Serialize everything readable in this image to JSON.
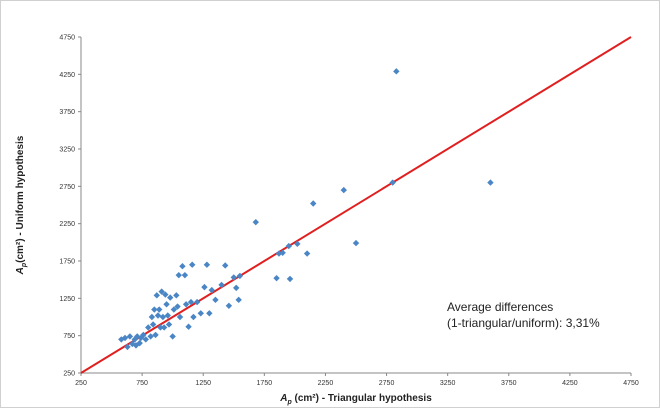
{
  "chart_data": {
    "type": "scatter",
    "xlabel": {
      "main": "A",
      "sub": "p",
      "rest": " (cm²) - Triangular hypothesis"
    },
    "ylabel": {
      "main": "A",
      "sub": "p",
      "rest": "(cm²) -  Uniform hypothesis"
    },
    "xlim": [
      250,
      4750
    ],
    "ylim": [
      250,
      4750
    ],
    "xticks": [
      "250",
      "750",
      "1250",
      "1750",
      "2250",
      "2750",
      "3250",
      "3750",
      "4250",
      "4750"
    ],
    "yticks": [
      "250",
      "750",
      "1250",
      "1750",
      "2250",
      "2750",
      "3250",
      "3750",
      "4250",
      "4750"
    ],
    "grid": false,
    "marker_color": "#4a86c5",
    "line_color": "#e02020",
    "reference_line": {
      "x": [
        250,
        4750
      ],
      "y": [
        250,
        4750
      ]
    },
    "annotation": [
      "Average differences",
      "(1-triangular/uniform): 3,31%"
    ],
    "points": [
      {
        "x": 580,
        "y": 700
      },
      {
        "x": 610,
        "y": 720
      },
      {
        "x": 630,
        "y": 600
      },
      {
        "x": 650,
        "y": 740
      },
      {
        "x": 670,
        "y": 640
      },
      {
        "x": 690,
        "y": 700
      },
      {
        "x": 700,
        "y": 620
      },
      {
        "x": 710,
        "y": 740
      },
      {
        "x": 730,
        "y": 650
      },
      {
        "x": 740,
        "y": 720
      },
      {
        "x": 760,
        "y": 760
      },
      {
        "x": 780,
        "y": 700
      },
      {
        "x": 800,
        "y": 860
      },
      {
        "x": 820,
        "y": 740
      },
      {
        "x": 830,
        "y": 1000
      },
      {
        "x": 840,
        "y": 900
      },
      {
        "x": 850,
        "y": 1100
      },
      {
        "x": 860,
        "y": 760
      },
      {
        "x": 870,
        "y": 1290
      },
      {
        "x": 880,
        "y": 1020
      },
      {
        "x": 890,
        "y": 1100
      },
      {
        "x": 900,
        "y": 860
      },
      {
        "x": 910,
        "y": 1340
      },
      {
        "x": 920,
        "y": 1000
      },
      {
        "x": 930,
        "y": 860
      },
      {
        "x": 940,
        "y": 1300
      },
      {
        "x": 950,
        "y": 1170
      },
      {
        "x": 960,
        "y": 1020
      },
      {
        "x": 970,
        "y": 900
      },
      {
        "x": 980,
        "y": 1260
      },
      {
        "x": 1000,
        "y": 740
      },
      {
        "x": 1010,
        "y": 1100
      },
      {
        "x": 1030,
        "y": 1290
      },
      {
        "x": 1040,
        "y": 1140
      },
      {
        "x": 1050,
        "y": 1560
      },
      {
        "x": 1060,
        "y": 1000
      },
      {
        "x": 1080,
        "y": 1680
      },
      {
        "x": 1100,
        "y": 1560
      },
      {
        "x": 1110,
        "y": 1170
      },
      {
        "x": 1130,
        "y": 870
      },
      {
        "x": 1150,
        "y": 1200
      },
      {
        "x": 1160,
        "y": 1700
      },
      {
        "x": 1170,
        "y": 1000
      },
      {
        "x": 1200,
        "y": 1200
      },
      {
        "x": 1230,
        "y": 1050
      },
      {
        "x": 1260,
        "y": 1400
      },
      {
        "x": 1280,
        "y": 1700
      },
      {
        "x": 1300,
        "y": 1050
      },
      {
        "x": 1320,
        "y": 1360
      },
      {
        "x": 1350,
        "y": 1230
      },
      {
        "x": 1400,
        "y": 1430
      },
      {
        "x": 1430,
        "y": 1690
      },
      {
        "x": 1460,
        "y": 1150
      },
      {
        "x": 1500,
        "y": 1530
      },
      {
        "x": 1520,
        "y": 1390
      },
      {
        "x": 1540,
        "y": 1230
      },
      {
        "x": 1550,
        "y": 1550
      },
      {
        "x": 1680,
        "y": 2270
      },
      {
        "x": 1850,
        "y": 1520
      },
      {
        "x": 1870,
        "y": 1850
      },
      {
        "x": 1900,
        "y": 1860
      },
      {
        "x": 1950,
        "y": 1950
      },
      {
        "x": 1960,
        "y": 1510
      },
      {
        "x": 2020,
        "y": 1980
      },
      {
        "x": 2100,
        "y": 1850
      },
      {
        "x": 2150,
        "y": 2520
      },
      {
        "x": 2400,
        "y": 2700
      },
      {
        "x": 2500,
        "y": 1990
      },
      {
        "x": 2800,
        "y": 2800
      },
      {
        "x": 2830,
        "y": 4290
      },
      {
        "x": 3600,
        "y": 2800
      }
    ]
  }
}
